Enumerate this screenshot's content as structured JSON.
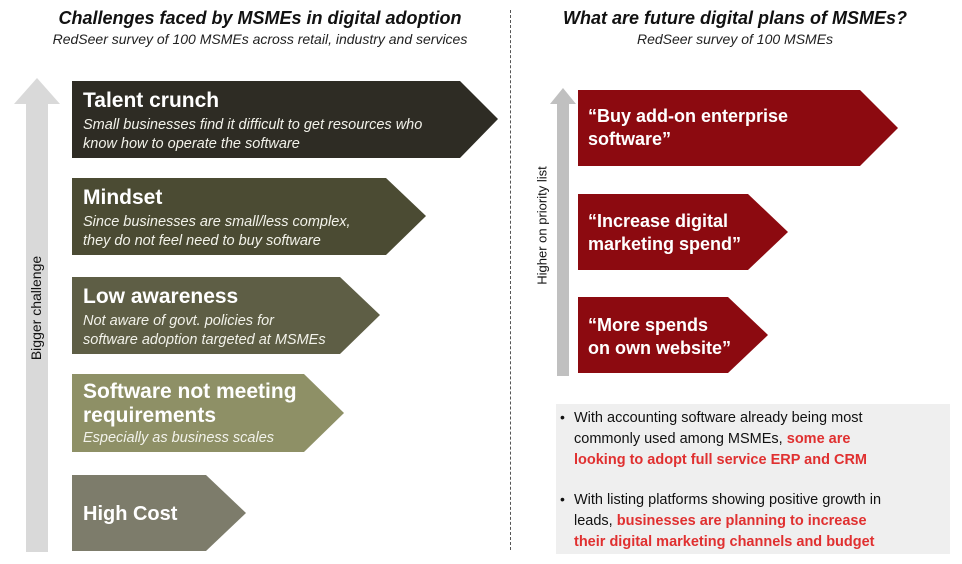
{
  "left": {
    "title": "Challenges faced by MSMEs in digital adoption",
    "subtitle": "RedSeer survey of 100 MSMEs across retail, industry and services",
    "axis_label": "Bigger challenge",
    "items": [
      {
        "title": "Talent crunch",
        "line1": "Small businesses find it difficult to get resources who",
        "line2": "know how to operate the software",
        "color": "#2e2c24"
      },
      {
        "title": "Mindset",
        "line1": "Since businesses are small/less complex,",
        "line2": "they do not feel need to buy software",
        "color": "#4b4b33"
      },
      {
        "title": "Low awareness",
        "line1": "Not aware  of govt. policies for",
        "line2": "software  adoption targeted at MSMEs",
        "color": "#5e5e45"
      },
      {
        "title1": "Software  not meeting",
        "title2": "requirements",
        "line1": "Especially as business scales",
        "color": "#8e9066"
      },
      {
        "title": "High Cost",
        "color": "#7d7c6b"
      }
    ]
  },
  "right": {
    "title": "What are future digital plans of MSMEs?",
    "subtitle": "RedSeer survey of 100 MSMEs",
    "axis_label": "Higher  on priority list",
    "items": [
      {
        "line1": "“Buy add-on enterprise",
        "line2": "software”",
        "color": "#8c0a10"
      },
      {
        "line1": "“Increase digital",
        "line2": "marketing spend”",
        "color": "#8c0a10"
      },
      {
        "line1": "“More spends",
        "line2": "on own website”",
        "color": "#8c0a10"
      }
    ],
    "notes": [
      {
        "bullet": "•",
        "line1": "With accounting  software  already  being  most",
        "line2a": "commonly  used among MSMEs, ",
        "line2b": "some  are",
        "line3": "looking  to adopt full service  ERP and CRM"
      },
      {
        "bullet": "•",
        "line1": "With listing  platforms  showing  positive  growth  in",
        "line2a": "leads, ",
        "line2b": "businesses  are planning  to increase",
        "line3": "their digital  marketing  channels  and budget"
      }
    ]
  }
}
